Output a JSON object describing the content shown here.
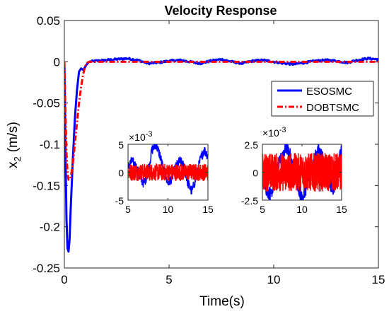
{
  "chart_data": [
    {
      "type": "line",
      "title": "Velocity Response",
      "xlabel": "Time(s)",
      "ylabel_main": "x",
      "ylabel_sub": "2",
      "ylabel_unit": "(m/s)",
      "xlim": [
        0,
        15
      ],
      "ylim": [
        -0.25,
        0.05
      ],
      "xticks": [
        0,
        5,
        10,
        15
      ],
      "xtick_labels": [
        "0",
        "5",
        "10",
        "15"
      ],
      "yticks": [
        0.05,
        0,
        -0.05,
        -0.1,
        -0.15,
        -0.2,
        -0.25
      ],
      "ytick_labels": [
        "0.05",
        "0",
        "-0.05",
        "-0.1",
        "-0.15",
        "-0.2",
        "-0.25"
      ],
      "grid": false,
      "legend_position": "upper-right",
      "series": [
        {
          "name": "ESOSMC",
          "color": "#0000ff",
          "style": "solid",
          "x": [
            0,
            0.05,
            0.1,
            0.15,
            0.2,
            0.25,
            0.3,
            0.4,
            0.5,
            0.6,
            0.7,
            0.8,
            0.9,
            1.0,
            1.1,
            1.2,
            1.5,
            2.0,
            2.5,
            3.0,
            3.5,
            4.0,
            4.5,
            5.0,
            5.5,
            6.0,
            6.5,
            7.0,
            7.5,
            8.0,
            8.5,
            9.0,
            9.5,
            10.0,
            10.5,
            11.0,
            11.5,
            12.0,
            12.5,
            13.0,
            13.5,
            14.0,
            14.5,
            15.0
          ],
          "y": [
            0,
            -0.1,
            -0.19,
            -0.226,
            -0.23,
            -0.215,
            -0.18,
            -0.12,
            -0.07,
            -0.035,
            -0.012,
            -0.008,
            -0.01,
            -0.006,
            -0.002,
            0.0,
            0.001,
            0.002,
            0.003,
            0.004,
            0.002,
            -0.002,
            -0.001,
            0.001,
            0.002,
            0.0,
            -0.002,
            0.001,
            0.003,
            0.0,
            -0.002,
            0.001,
            0.002,
            0.0,
            -0.002,
            -0.003,
            -0.001,
            0.001,
            0.002,
            0.001,
            -0.001,
            0.002,
            0.004,
            0.003
          ]
        },
        {
          "name": "DOBTSMC",
          "color": "#ff0000",
          "style": "dash-dot",
          "x": [
            0,
            0.05,
            0.1,
            0.15,
            0.2,
            0.25,
            0.3,
            0.4,
            0.5,
            0.6,
            0.7,
            0.8,
            0.9,
            1.0,
            1.1,
            1.2,
            1.5,
            2.0,
            3.0,
            4.0,
            5.0,
            6.0,
            7.0,
            8.0,
            9.0,
            10.0,
            11.0,
            12.0,
            13.0,
            14.0,
            15.0
          ],
          "y": [
            0,
            -0.06,
            -0.11,
            -0.135,
            -0.143,
            -0.143,
            -0.14,
            -0.125,
            -0.1,
            -0.075,
            -0.05,
            -0.03,
            -0.015,
            -0.005,
            -0.001,
            0.0,
            0.0,
            0.0,
            0.0,
            0.0,
            0.0,
            0.0,
            0.0,
            0.0,
            0.0,
            0.0,
            0.0,
            0.0,
            0.0,
            0.0,
            0.0
          ]
        }
      ]
    },
    {
      "type": "line",
      "title": "",
      "exponent_label": "×10",
      "exponent_power": "-3",
      "xlim": [
        5,
        15
      ],
      "ylim": [
        -5,
        5
      ],
      "xticks": [
        5,
        10,
        15
      ],
      "xtick_labels": [
        "5",
        "10",
        "15"
      ],
      "yticks": [
        5,
        0,
        -5
      ],
      "ytick_labels": [
        "5",
        "0",
        "-5"
      ],
      "series": [
        {
          "name": "ESOSMC",
          "color": "#0000ff",
          "x": [
            5.0,
            5.5,
            6.0,
            6.5,
            7.0,
            7.5,
            8.0,
            8.5,
            9.0,
            9.5,
            10.0,
            10.5,
            11.0,
            11.5,
            12.0,
            12.5,
            13.0,
            13.5,
            14.0,
            14.5,
            15.0
          ],
          "y": [
            1.0,
            2.0,
            1.0,
            -1.0,
            -2.0,
            0.0,
            4.0,
            5.0,
            3.0,
            0.0,
            -2.0,
            -1.0,
            1.0,
            2.0,
            1.0,
            -2.0,
            -3.5,
            -1.0,
            2.0,
            4.0,
            3.0
          ]
        },
        {
          "name": "DOBTSMC",
          "color": "#ff0000",
          "x": [
            5.0,
            6.0,
            7.0,
            8.0,
            9.0,
            10.0,
            11.0,
            12.0,
            13.0,
            14.0,
            15.0
          ],
          "y": [
            0,
            0,
            0,
            0,
            0,
            0,
            0,
            0,
            0,
            0,
            0
          ],
          "noise_amplitude": 1.5
        }
      ]
    },
    {
      "type": "line",
      "title": "",
      "exponent_label": "×10",
      "exponent_power": "-3",
      "xlim": [
        5,
        15
      ],
      "ylim": [
        -2.5,
        2.5
      ],
      "xticks": [
        5,
        10,
        15
      ],
      "xtick_labels": [
        "5",
        "10",
        "15"
      ],
      "yticks": [
        2.5,
        0,
        -2.5
      ],
      "ytick_labels": [
        "2.5",
        "0",
        "-2.5"
      ],
      "series": [
        {
          "name": "ESOSMC",
          "color": "#0000ff",
          "x": [
            5.0,
            5.5,
            6.0,
            6.5,
            7.0,
            7.5,
            8.0,
            8.5,
            9.0,
            9.5,
            10.0,
            10.5,
            11.0,
            11.5,
            12.0,
            12.5,
            13.0,
            13.5,
            14.0,
            14.5,
            15.0
          ],
          "y": [
            0.5,
            -1.5,
            -2.0,
            -1.0,
            0.5,
            1.5,
            2.3,
            1.5,
            0.0,
            -1.5,
            -2.4,
            -1.5,
            0.0,
            1.0,
            2.0,
            1.5,
            0.0,
            -1.0,
            -1.5,
            0.5,
            2.0
          ],
          "noise_amplitude": 0.6
        },
        {
          "name": "DOBTSMC",
          "color": "#ff0000",
          "x": [
            5.0,
            6.0,
            7.0,
            8.0,
            9.0,
            10.0,
            11.0,
            12.0,
            13.0,
            14.0,
            15.0
          ],
          "y": [
            0,
            0,
            0,
            0,
            0,
            0,
            0,
            0,
            0,
            0,
            0
          ],
          "noise_amplitude": 1.7
        }
      ]
    }
  ]
}
